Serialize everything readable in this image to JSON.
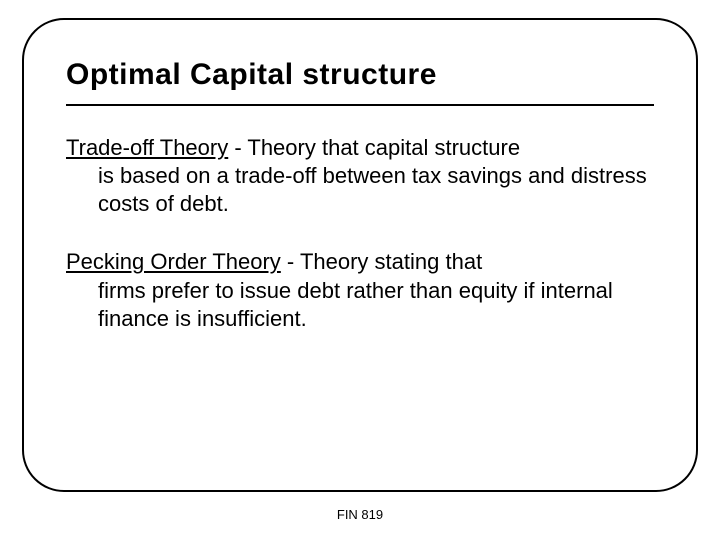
{
  "slide": {
    "title": "Optimal Capital structure",
    "items": [
      {
        "term": "Trade-off Theory",
        "definition_first": " - Theory that capital structure",
        "definition_rest": "is based on a trade-off between tax savings and distress costs of debt."
      },
      {
        "term": "Pecking Order Theory",
        "definition_first": " - Theory stating that",
        "definition_rest": "firms prefer to issue debt rather than equity if internal finance is insufficient."
      }
    ],
    "footer": "FIN 819"
  },
  "style": {
    "frame_border_color": "#000000",
    "frame_border_width": 2,
    "frame_border_radius": 42,
    "background_color": "#ffffff",
    "title_font": "Arial Black",
    "title_fontsize": 30,
    "title_color": "#000000",
    "body_fontsize": 22,
    "body_color": "#000000",
    "footer_fontsize": 13,
    "rule_thickness": 2.5
  }
}
